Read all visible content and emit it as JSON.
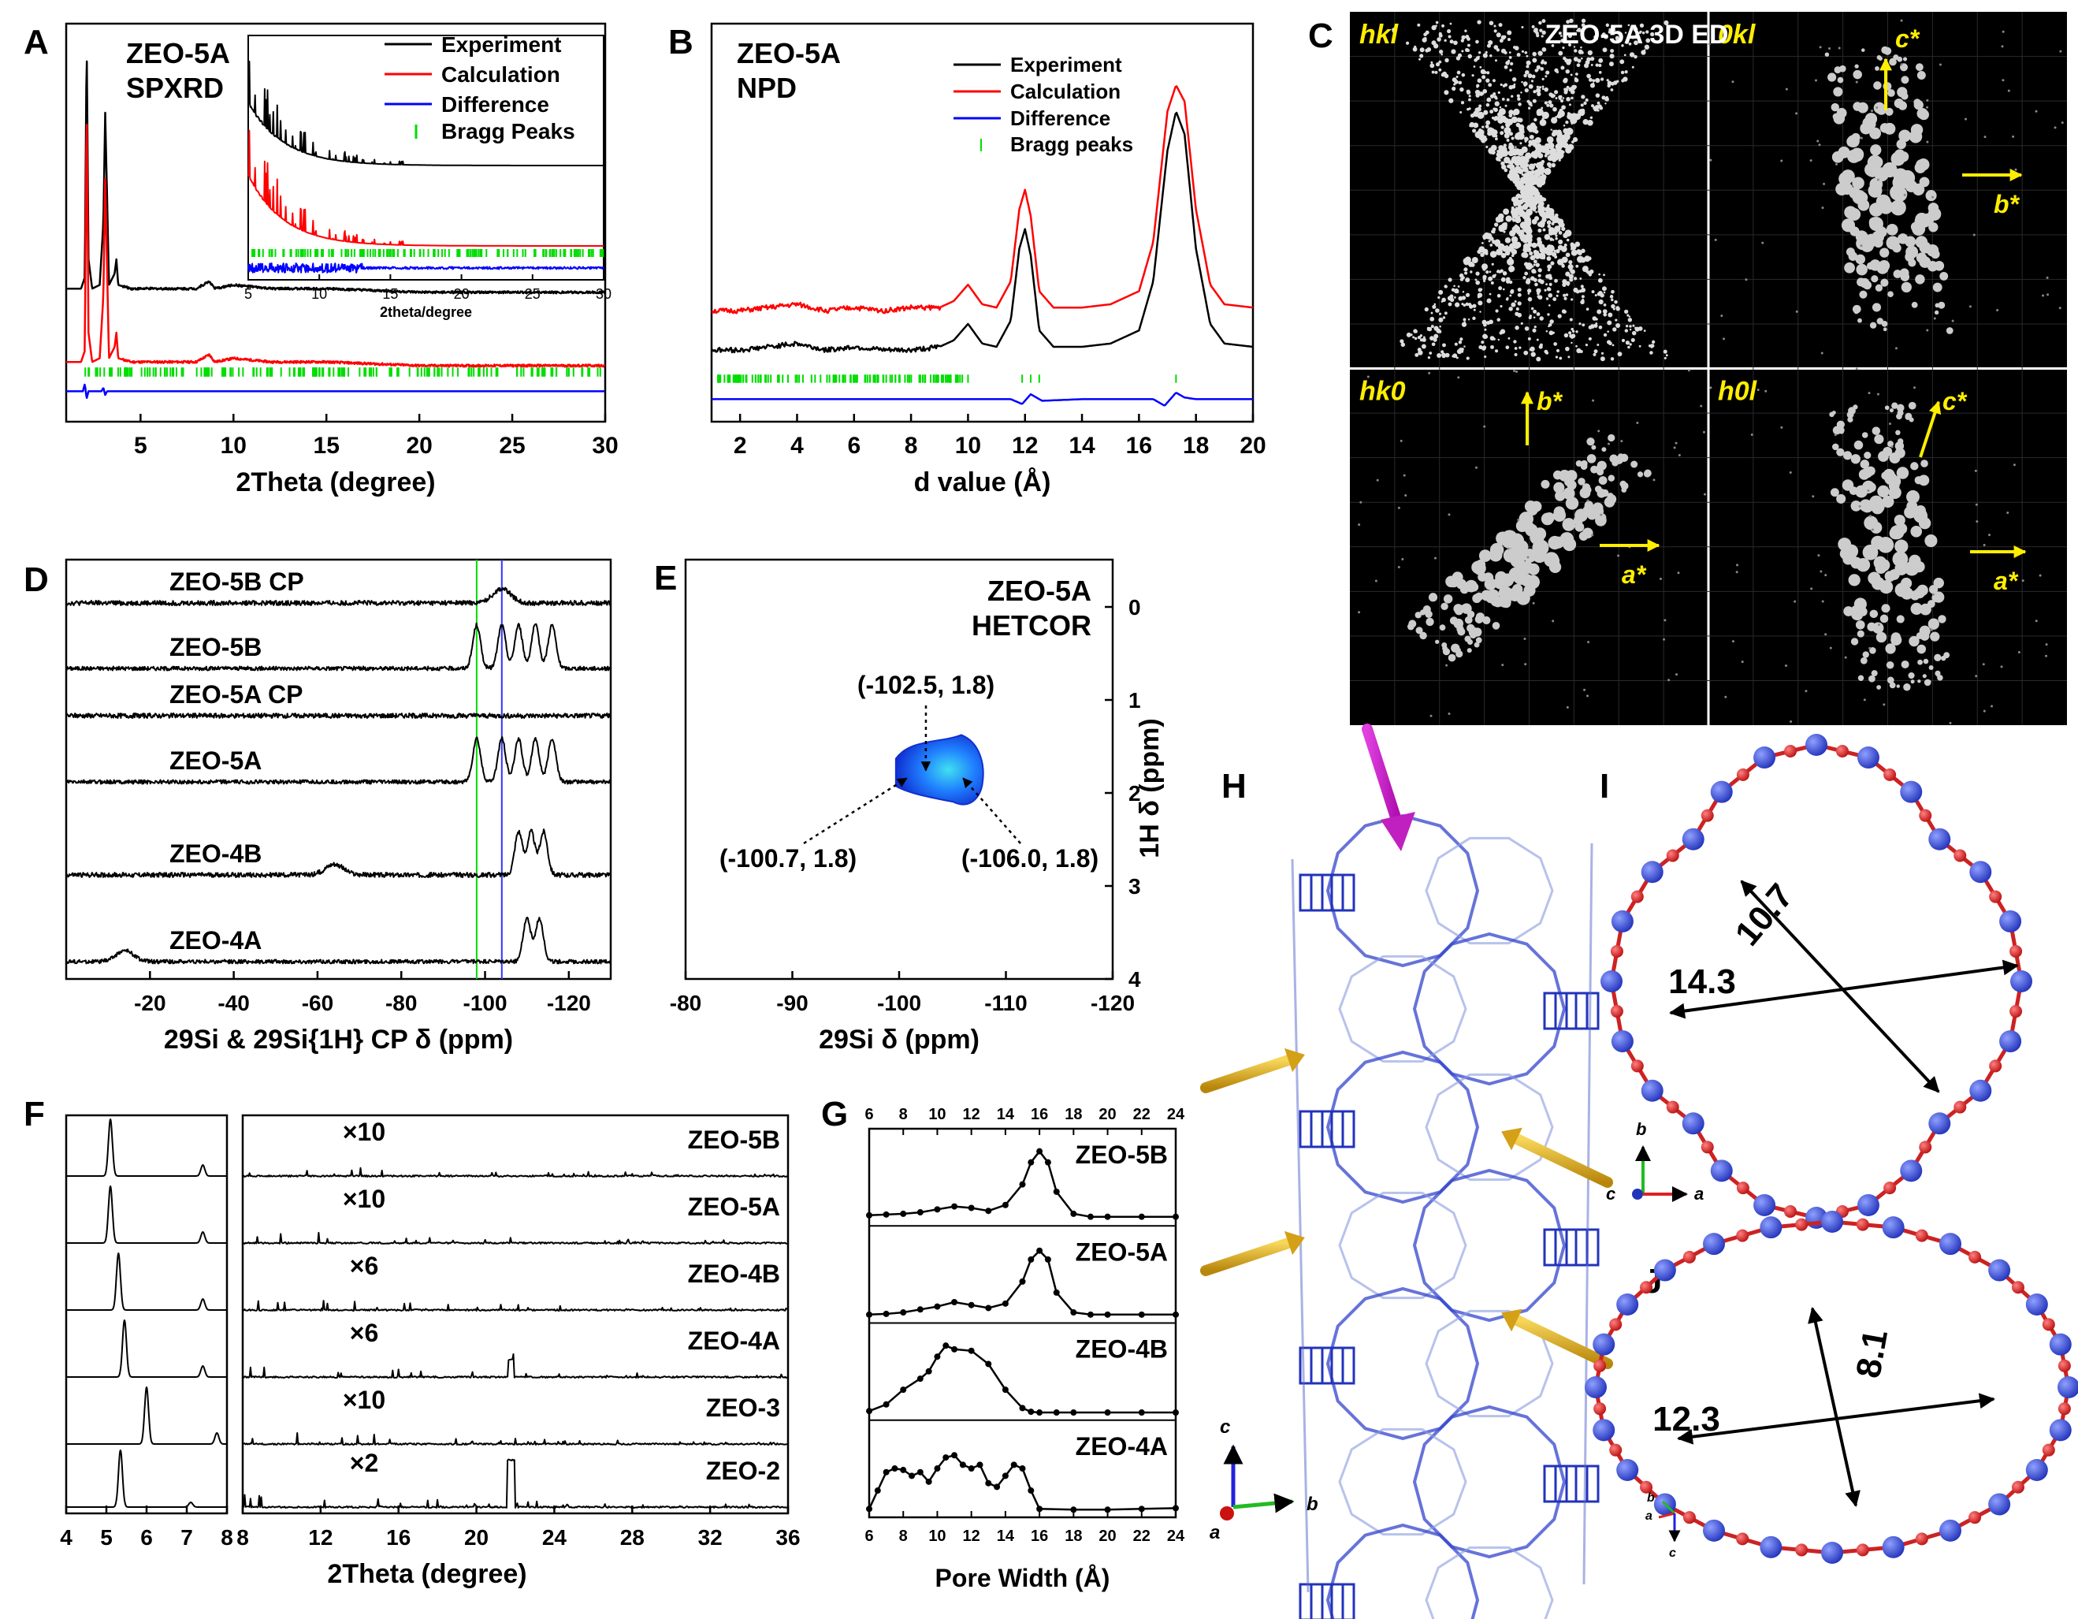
{
  "chart_data": [
    {
      "panel": "A",
      "type": "line",
      "title": "ZEO-5A",
      "subtitle": "SPXRD",
      "xlabel": "2Theta (degree)",
      "ylabel": "",
      "xlim": [
        1,
        30
      ],
      "xticks": [
        "5",
        "10",
        "15",
        "20",
        "25",
        "30"
      ],
      "legend": [
        "Experiment",
        "Calculation",
        "Difference",
        "Bragg Peaks"
      ],
      "legend_position": "top-right",
      "colors": {
        "exp": "#000000",
        "calc": "#ff0000",
        "diff": "#0000ff",
        "bragg": "#00dd00"
      },
      "series": [
        {
          "name": "Experiment",
          "x": [
            1,
            1.8,
            2.0,
            2.1,
            2.2,
            2.4,
            2.8,
            3.0,
            3.1,
            3.3,
            3.6,
            3.7,
            3.8,
            4.5,
            6,
            8,
            8.7,
            9,
            10,
            12,
            15,
            20,
            25,
            30
          ],
          "values": [
            0.32,
            0.32,
            0.35,
            1.0,
            0.4,
            0.32,
            0.33,
            0.5,
            0.8,
            0.33,
            0.36,
            0.4,
            0.33,
            0.32,
            0.32,
            0.32,
            0.34,
            0.32,
            0.33,
            0.32,
            0.32,
            0.31,
            0.31,
            0.31
          ]
        },
        {
          "name": "Calculation",
          "x": [
            1,
            1.8,
            2.0,
            2.1,
            2.2,
            2.4,
            2.8,
            3.0,
            3.1,
            3.3,
            3.6,
            3.7,
            3.8,
            4.5,
            6,
            8,
            8.7,
            9,
            10,
            12,
            15,
            20,
            25,
            30
          ],
          "values": [
            0.12,
            0.12,
            0.15,
            0.83,
            0.2,
            0.12,
            0.13,
            0.3,
            0.62,
            0.13,
            0.16,
            0.2,
            0.13,
            0.12,
            0.12,
            0.12,
            0.14,
            0.12,
            0.13,
            0.12,
            0.12,
            0.11,
            0.11,
            0.11
          ]
        },
        {
          "name": "Difference",
          "x": [
            1,
            1.9,
            2.0,
            2.1,
            2.2,
            2.9,
            3.0,
            3.1,
            3.2,
            5,
            10,
            20,
            30
          ],
          "values": [
            0.04,
            0.04,
            0.06,
            0.02,
            0.04,
            0.04,
            0.05,
            0.03,
            0.04,
            0.04,
            0.04,
            0.04,
            0.04
          ]
        }
      ],
      "inset": {
        "xlabel": "2theta/degree",
        "xlim": [
          5,
          30
        ],
        "xticks": [
          "5",
          "10",
          "15",
          "20",
          "25",
          "30"
        ]
      }
    },
    {
      "panel": "B",
      "type": "line",
      "title": "ZEO-5A",
      "subtitle": "NPD",
      "xlabel": "d value (Å)",
      "ylabel": "",
      "xlim": [
        1,
        20
      ],
      "xticks": [
        "2",
        "4",
        "6",
        "8",
        "10",
        "12",
        "14",
        "16",
        "18",
        "20"
      ],
      "legend": [
        "Experiment",
        "Calculation",
        "Difference",
        "Bragg peaks"
      ],
      "legend_position": "top-right",
      "series": [
        {
          "name": "Experiment",
          "x": [
            1,
            2,
            3,
            4,
            5,
            6,
            7,
            8,
            9,
            9.5,
            10,
            10.5,
            11,
            11.5,
            11.8,
            12,
            12.2,
            12.5,
            13,
            14,
            15,
            16,
            16.5,
            17,
            17.3,
            17.6,
            18,
            18.5,
            19,
            20
          ],
          "values": [
            0.19,
            0.19,
            0.2,
            0.21,
            0.19,
            0.2,
            0.19,
            0.19,
            0.2,
            0.22,
            0.27,
            0.21,
            0.2,
            0.28,
            0.5,
            0.56,
            0.48,
            0.25,
            0.2,
            0.2,
            0.21,
            0.25,
            0.4,
            0.8,
            0.92,
            0.85,
            0.5,
            0.27,
            0.21,
            0.2
          ]
        },
        {
          "name": "Calculation",
          "x": [
            1,
            2,
            3,
            4,
            5,
            6,
            7,
            8,
            9,
            9.5,
            10,
            10.5,
            11,
            11.5,
            11.8,
            12,
            12.2,
            12.5,
            13,
            14,
            15,
            16,
            16.5,
            17,
            17.3,
            17.6,
            18,
            18.5,
            19,
            20
          ],
          "values": [
            0.31,
            0.31,
            0.32,
            0.33,
            0.31,
            0.32,
            0.31,
            0.32,
            0.32,
            0.34,
            0.39,
            0.33,
            0.32,
            0.4,
            0.62,
            0.68,
            0.6,
            0.37,
            0.32,
            0.32,
            0.33,
            0.37,
            0.52,
            0.92,
            1.0,
            0.95,
            0.62,
            0.39,
            0.33,
            0.32
          ]
        },
        {
          "name": "Difference",
          "x": [
            1,
            4,
            8,
            11.5,
            11.9,
            12.2,
            12.6,
            14,
            16.5,
            16.9,
            17.3,
            17.6,
            18,
            20
          ],
          "values": [
            0.04,
            0.04,
            0.04,
            0.04,
            0.025,
            0.055,
            0.035,
            0.04,
            0.04,
            0.02,
            0.06,
            0.045,
            0.04,
            0.04
          ]
        }
      ]
    },
    {
      "panel": "D",
      "type": "line",
      "xlabel": "29Si & 29Si{1H} CP δ (ppm)",
      "xlim": [
        0,
        -130
      ],
      "xticks": [
        "-20",
        "-40",
        "-60",
        "-80",
        "-100",
        "-120"
      ],
      "reference_lines_ppm": [
        -98,
        -104
      ],
      "series": [
        {
          "name": "ZEO-5B CP",
          "peaks_ppm": [
            -104
          ]
        },
        {
          "name": "ZEO-5B",
          "peaks_ppm": [
            -98,
            -104,
            -108,
            -112,
            -116
          ]
        },
        {
          "name": "ZEO-5A CP",
          "peaks_ppm": []
        },
        {
          "name": "ZEO-5A",
          "peaks_ppm": [
            -98,
            -104,
            -108,
            -112,
            -116
          ]
        },
        {
          "name": "ZEO-4B",
          "peaks_ppm": [
            -64,
            -108,
            -111,
            -114
          ]
        },
        {
          "name": "ZEO-4A",
          "peaks_ppm": [
            -14,
            -110,
            -113
          ]
        }
      ]
    },
    {
      "panel": "E",
      "type": "heatmap",
      "title": "ZEO-5A",
      "subtitle": "HETCOR",
      "xlabel": "29Si δ (ppm)",
      "ylabel": "1H δ (ppm)",
      "xlim": [
        -80,
        -120
      ],
      "ylim": [
        0,
        4
      ],
      "xticks": [
        "-80",
        "-90",
        "-100",
        "-110",
        "-120"
      ],
      "yticks": [
        "0",
        "1",
        "2",
        "3",
        "4"
      ],
      "annotations": [
        "(-102.5, 1.8)",
        "(-100.7, 1.8)",
        "(-106.0, 1.8)"
      ],
      "points": [
        {
          "si": -102.5,
          "h": 1.8
        },
        {
          "si": -100.7,
          "h": 1.8
        },
        {
          "si": -106.0,
          "h": 1.8
        }
      ]
    },
    {
      "panel": "F",
      "type": "line",
      "xlabel": "2Theta (degree)",
      "xticks_left": [
        "4",
        "5",
        "6",
        "7",
        "8"
      ],
      "xticks_right": [
        "8",
        "12",
        "16",
        "20",
        "24",
        "28",
        "32",
        "36"
      ],
      "series": [
        {
          "name": "ZEO-5B",
          "scale": "×10",
          "main_peak": 5.1
        },
        {
          "name": "ZEO-5A",
          "scale": "×10",
          "main_peak": 5.1
        },
        {
          "name": "ZEO-4B",
          "scale": "×6",
          "main_peak": 5.3
        },
        {
          "name": "ZEO-4A",
          "scale": "×6",
          "main_peak": 5.45
        },
        {
          "name": "ZEO-3",
          "scale": "×10",
          "main_peak": 6.0
        },
        {
          "name": "ZEO-2",
          "scale": "×2",
          "main_peak": 5.35
        }
      ]
    },
    {
      "panel": "G",
      "type": "line",
      "xlabel": "Pore Width (Å)",
      "xlim": [
        6,
        24
      ],
      "xticks": [
        "6",
        "8",
        "10",
        "12",
        "14",
        "16",
        "18",
        "20",
        "22",
        "24"
      ],
      "series": [
        {
          "name": "ZEO-5B",
          "x": [
            6,
            7,
            8,
            9,
            10,
            11,
            12,
            13,
            14,
            15,
            15.5,
            16,
            16.5,
            17,
            18,
            19,
            20,
            22,
            24
          ],
          "values": [
            0.08,
            0.09,
            0.1,
            0.12,
            0.16,
            0.2,
            0.18,
            0.14,
            0.22,
            0.5,
            0.8,
            0.95,
            0.8,
            0.4,
            0.1,
            0.06,
            0.06,
            0.06,
            0.06
          ]
        },
        {
          "name": "ZEO-5A",
          "x": [
            6,
            7,
            8,
            9,
            10,
            11,
            12,
            13,
            14,
            15,
            15.5,
            16,
            16.5,
            17,
            18,
            19,
            20,
            22,
            24
          ],
          "values": [
            0.05,
            0.06,
            0.08,
            0.12,
            0.16,
            0.22,
            0.18,
            0.14,
            0.2,
            0.5,
            0.8,
            0.92,
            0.8,
            0.35,
            0.08,
            0.05,
            0.05,
            0.05,
            0.05
          ]
        },
        {
          "name": "ZEO-4B",
          "x": [
            6,
            7,
            8,
            9,
            9.5,
            10,
            10.5,
            11,
            12,
            13,
            14,
            15,
            15.5,
            16,
            17,
            18,
            20,
            22,
            24
          ],
          "values": [
            0.06,
            0.15,
            0.35,
            0.5,
            0.6,
            0.8,
            0.95,
            0.9,
            0.88,
            0.7,
            0.35,
            0.1,
            0.05,
            0.04,
            0.04,
            0.04,
            0.04,
            0.04,
            0.04
          ]
        },
        {
          "name": "ZEO-4A",
          "x": [
            6,
            6.5,
            7,
            7.5,
            8,
            8.5,
            9,
            9.5,
            10,
            10.5,
            11,
            11.5,
            12,
            12.5,
            13,
            13.5,
            14,
            14.5,
            15,
            15.5,
            16,
            18,
            20,
            22,
            24
          ],
          "values": [
            0.05,
            0.3,
            0.55,
            0.6,
            0.58,
            0.5,
            0.55,
            0.42,
            0.6,
            0.75,
            0.78,
            0.65,
            0.6,
            0.65,
            0.4,
            0.35,
            0.5,
            0.65,
            0.6,
            0.3,
            0.05,
            0.04,
            0.04,
            0.05,
            0.06
          ]
        }
      ]
    },
    {
      "panel": "I",
      "type": "table",
      "ring_dimensions": [
        "10.7",
        "14.3"
      ]
    },
    {
      "panel": "J",
      "type": "table",
      "ring_dimensions": [
        "8.1",
        "12.3"
      ]
    }
  ],
  "panel_labels": [
    "A",
    "B",
    "C",
    "D",
    "E",
    "F",
    "G",
    "H",
    "I",
    "J"
  ],
  "panel_c": {
    "title": "ZEO-5A 3D ED",
    "quadrants": [
      "hkl",
      "0kl",
      "hk0",
      "h0l"
    ],
    "axis_labels": {
      "c1": "c*",
      "b1": "b*",
      "b2": "b*",
      "a2": "a*",
      "c3": "c*",
      "a3": "a*"
    }
  },
  "panel_h": {
    "axes": {
      "c": "c",
      "b": "b",
      "a": "a"
    }
  },
  "panel_i_axes": {
    "b": "b",
    "a": "a",
    "c": "c"
  },
  "panel_j_axes": {
    "b": "b",
    "a": "a",
    "c": "c"
  }
}
